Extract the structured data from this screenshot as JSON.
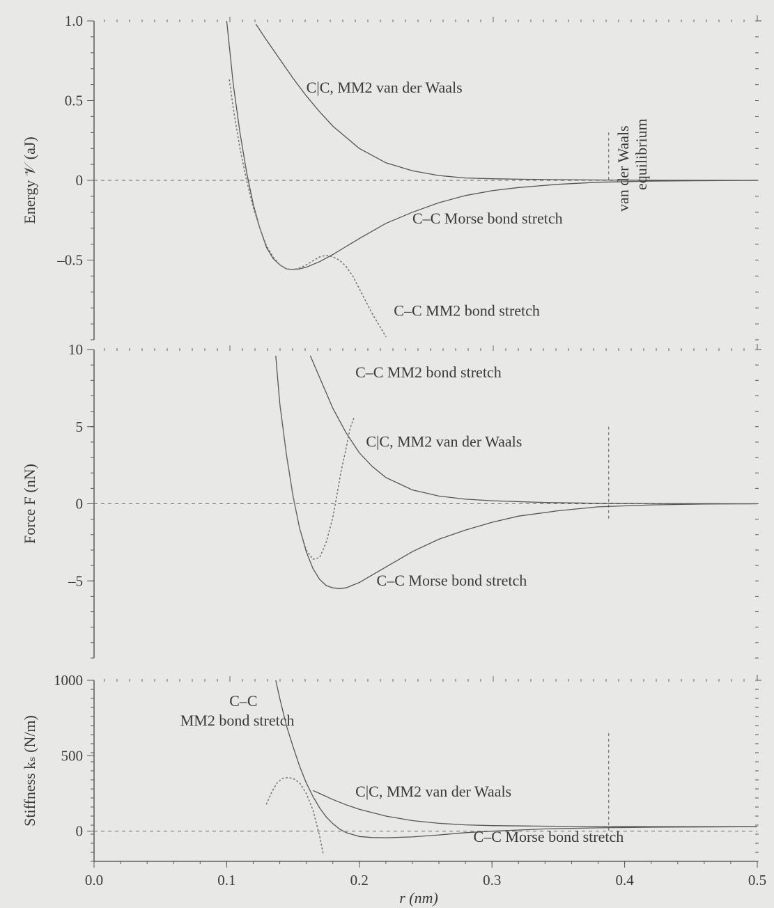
{
  "chart_data": [
    {
      "type": "line",
      "panel": "energy",
      "ylabel": "Energy 𝒱 (aJ)",
      "ylim": [
        -1.0,
        1.0
      ],
      "xlim": [
        0.0,
        0.5
      ],
      "y_ticks": [
        {
          "v": 1.0,
          "label": "1.0"
        },
        {
          "v": 0.5,
          "label": "0.5"
        },
        {
          "v": 0,
          "label": "0"
        },
        {
          "v": -0.5,
          "label": "–0.5"
        }
      ],
      "series": [
        {
          "key": "vdw",
          "style": "solid",
          "x": [
            0.122,
            0.13,
            0.14,
            0.15,
            0.16,
            0.17,
            0.18,
            0.19,
            0.2,
            0.22,
            0.24,
            0.26,
            0.28,
            0.3,
            0.34,
            0.38,
            0.42,
            0.46,
            0.5
          ],
          "y": [
            0.98,
            0.88,
            0.76,
            0.64,
            0.53,
            0.43,
            0.34,
            0.27,
            0.2,
            0.11,
            0.06,
            0.03,
            0.015,
            0.01,
            0.005,
            0.002,
            0.001,
            0.0005,
            0.0
          ]
        },
        {
          "key": "morse",
          "style": "solid",
          "x": [
            0.1,
            0.105,
            0.11,
            0.115,
            0.12,
            0.125,
            0.13,
            0.135,
            0.14,
            0.145,
            0.15,
            0.155,
            0.16,
            0.17,
            0.18,
            0.19,
            0.2,
            0.22,
            0.24,
            0.26,
            0.28,
            0.3,
            0.32,
            0.35,
            0.38,
            0.42,
            0.46,
            0.5
          ],
          "y": [
            1.0,
            0.6,
            0.3,
            0.05,
            -0.15,
            -0.3,
            -0.42,
            -0.49,
            -0.53,
            -0.555,
            -0.56,
            -0.555,
            -0.545,
            -0.51,
            -0.465,
            -0.415,
            -0.365,
            -0.27,
            -0.2,
            -0.14,
            -0.095,
            -0.065,
            -0.045,
            -0.025,
            -0.012,
            -0.005,
            -0.002,
            0.0
          ]
        },
        {
          "key": "mm2",
          "style": "dotted",
          "x": [
            0.102,
            0.105,
            0.11,
            0.115,
            0.12,
            0.125,
            0.13,
            0.135,
            0.14,
            0.145,
            0.15,
            0.155,
            0.16,
            0.165,
            0.17,
            0.175,
            0.18,
            0.185,
            0.19,
            0.195,
            0.2,
            0.205,
            0.21,
            0.215,
            0.22
          ],
          "y": [
            0.63,
            0.45,
            0.2,
            0.0,
            -0.17,
            -0.3,
            -0.41,
            -0.48,
            -0.53,
            -0.555,
            -0.56,
            -0.55,
            -0.53,
            -0.505,
            -0.48,
            -0.47,
            -0.48,
            -0.5,
            -0.54,
            -0.6,
            -0.68,
            -0.76,
            -0.84,
            -0.91,
            -0.98
          ]
        }
      ],
      "annotations": [
        {
          "text": "C|C, MM2 van der Waals",
          "x": 0.16,
          "y": 0.55
        },
        {
          "text": "C–C  Morse bond stretch",
          "x": 0.24,
          "y": -0.27
        },
        {
          "text": "C–C  MM2 bond stretch",
          "x": 0.226,
          "y": -0.85
        }
      ],
      "vline": {
        "x": 0.388,
        "from": 0.0,
        "to": 0.3,
        "label_1": "van der Waals",
        "label_2": "equilibrium"
      }
    },
    {
      "type": "line",
      "panel": "force",
      "ylabel": "Force F (nN)",
      "ylim": [
        -10,
        10
      ],
      "xlim": [
        0.0,
        0.5
      ],
      "y_ticks": [
        {
          "v": 10,
          "label": "10"
        },
        {
          "v": 5,
          "label": "5"
        },
        {
          "v": 0,
          "label": "0"
        },
        {
          "v": -5,
          "label": "–5"
        }
      ],
      "series": [
        {
          "key": "vdw",
          "style": "solid",
          "x": [
            0.163,
            0.17,
            0.18,
            0.19,
            0.2,
            0.21,
            0.22,
            0.24,
            0.26,
            0.28,
            0.3,
            0.34,
            0.38,
            0.42,
            0.46,
            0.5
          ],
          "y": [
            9.6,
            8.2,
            6.2,
            4.6,
            3.3,
            2.4,
            1.7,
            0.9,
            0.5,
            0.3,
            0.2,
            0.08,
            0.03,
            0.02,
            0.01,
            0.0
          ]
        },
        {
          "key": "morse",
          "style": "solid",
          "x": [
            0.137,
            0.14,
            0.145,
            0.15,
            0.155,
            0.16,
            0.165,
            0.17,
            0.175,
            0.18,
            0.185,
            0.19,
            0.2,
            0.21,
            0.22,
            0.24,
            0.26,
            0.28,
            0.3,
            0.32,
            0.35,
            0.38,
            0.42,
            0.46,
            0.5
          ],
          "y": [
            9.6,
            6.5,
            3.2,
            0.5,
            -1.6,
            -3.1,
            -4.2,
            -4.9,
            -5.3,
            -5.45,
            -5.5,
            -5.45,
            -5.1,
            -4.6,
            -4.1,
            -3.1,
            -2.3,
            -1.7,
            -1.2,
            -0.8,
            -0.45,
            -0.2,
            -0.07,
            -0.02,
            0.0
          ]
        },
        {
          "key": "mm2",
          "style": "dotted",
          "x": [
            0.14,
            0.145,
            0.15,
            0.155,
            0.16,
            0.165,
            0.17,
            0.175,
            0.18,
            0.183,
            0.186,
            0.19,
            0.193,
            0.196
          ],
          "y": [
            6.5,
            3.2,
            0.5,
            -1.6,
            -3.0,
            -3.6,
            -3.5,
            -2.5,
            -0.9,
            0.5,
            2.0,
            3.6,
            4.9,
            5.6
          ]
        }
      ],
      "annotations": [
        {
          "text": "C–C  MM2 bond stretch",
          "x": 0.197,
          "y": 8.2
        },
        {
          "text": "C|C, MM2 van der Waals",
          "x": 0.205,
          "y": 3.7
        },
        {
          "text": "C–C  Morse bond stretch",
          "x": 0.213,
          "y": -5.3
        }
      ],
      "vline": {
        "x": 0.388,
        "from": -1.0,
        "to": 5.0
      }
    },
    {
      "type": "line",
      "panel": "stiffness",
      "ylabel": "Stiffness kₛ (N/m)",
      "ylim": [
        -200,
        1000
      ],
      "xlim": [
        0.0,
        0.5
      ],
      "x_ticks": [
        {
          "v": 0.0,
          "label": "0.0"
        },
        {
          "v": 0.1,
          "label": "0.1"
        },
        {
          "v": 0.2,
          "label": "0.2"
        },
        {
          "v": 0.3,
          "label": "0.3"
        },
        {
          "v": 0.4,
          "label": "0.4"
        },
        {
          "v": 0.5,
          "label": "0.5"
        }
      ],
      "xlabel": "r (nm)",
      "y_ticks": [
        {
          "v": 1000,
          "label": "1000"
        },
        {
          "v": 500,
          "label": "500"
        },
        {
          "v": 0,
          "label": "0"
        }
      ],
      "series": [
        {
          "key": "vdw",
          "style": "solid",
          "x": [
            0.165,
            0.17,
            0.18,
            0.19,
            0.2,
            0.22,
            0.24,
            0.26,
            0.28,
            0.3,
            0.34,
            0.38,
            0.42,
            0.46,
            0.5
          ],
          "y": [
            270,
            250,
            210,
            175,
            145,
            100,
            70,
            52,
            42,
            37,
            33,
            31,
            30,
            30,
            30
          ]
        },
        {
          "key": "morse",
          "style": "solid",
          "x": [
            0.137,
            0.14,
            0.145,
            0.15,
            0.155,
            0.16,
            0.165,
            0.17,
            0.175,
            0.18,
            0.185,
            0.19,
            0.2,
            0.21,
            0.22,
            0.24,
            0.26,
            0.28,
            0.3,
            0.34,
            0.38,
            0.42,
            0.46,
            0.5
          ],
          "y": [
            1000,
            880,
            700,
            560,
            430,
            320,
            230,
            155,
            95,
            50,
            15,
            -10,
            -35,
            -42,
            -44,
            -38,
            -25,
            -10,
            0,
            15,
            22,
            26,
            28,
            30
          ]
        },
        {
          "key": "mm2",
          "style": "dotted",
          "x": [
            0.13,
            0.134,
            0.138,
            0.142,
            0.146,
            0.15,
            0.155,
            0.16,
            0.165,
            0.17,
            0.173
          ],
          "y": [
            180,
            260,
            320,
            350,
            355,
            350,
            320,
            250,
            140,
            -30,
            -160
          ]
        }
      ],
      "annotations": [
        {
          "text": "C–C",
          "x": 0.102,
          "y": 830
        },
        {
          "text": "MM2 bond stretch",
          "x": 0.065,
          "y": 700
        },
        {
          "text": "C|C, MM2 van der Waals",
          "x": 0.197,
          "y": 230
        },
        {
          "text": "C–C  Morse bond stretch",
          "x": 0.286,
          "y": -70
        }
      ],
      "vline": {
        "x": 0.388,
        "from": 0.0,
        "to": 650
      }
    }
  ]
}
